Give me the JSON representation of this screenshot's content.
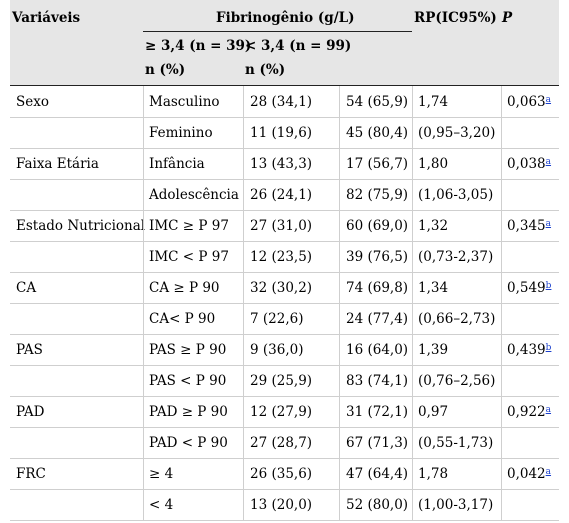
{
  "header": {
    "col_variaveis": "Variáveis",
    "col_group": "Fibrinogênio (g/L)",
    "col_rp": "RP(IC95%)",
    "col_p": "P",
    "sub1": "≥ 3,4 (n = 39)",
    "sub2": "< 3,4 (n = 99)",
    "unit1": "n (%)",
    "unit2": "n (%)"
  },
  "rows": [
    {
      "var": "Sexo",
      "cat": "Masculino",
      "a": "28 (34,1)",
      "b": "54 (65,9)",
      "rp": "1,74",
      "p": "0,063",
      "note": "a"
    },
    {
      "var": "",
      "cat": "Feminino",
      "a": "11 (19,6)",
      "b": "45 (80,4)",
      "rp": "(0,95–3,20)",
      "p": "",
      "note": ""
    },
    {
      "var": "Faixa Etária",
      "cat": "Infância",
      "a": "13 (43,3)",
      "b": "17 (56,7)",
      "rp": "1,80",
      "p": "0,038",
      "note": "a"
    },
    {
      "var": "",
      "cat": "Adolescência",
      "a": "26 (24,1)",
      "b": "82 (75,9)",
      "rp": "(1,06-3,05)",
      "p": "",
      "note": ""
    },
    {
      "var": "Estado Nutricional",
      "cat": "IMC ≥ P 97",
      "a": "27 (31,0)",
      "b": "60 (69,0)",
      "rp": "1,32",
      "p": "0,345",
      "note": "a"
    },
    {
      "var": "",
      "cat": "IMC < P 97",
      "a": "12 (23,5)",
      "b": "39 (76,5)",
      "rp": "(0,73-2,37)",
      "p": "",
      "note": ""
    },
    {
      "var": "CA",
      "cat": "CA ≥ P 90",
      "a": "32 (30,2)",
      "b": "74 (69,8)",
      "rp": "1,34",
      "p": "0,549",
      "note": "b"
    },
    {
      "var": "",
      "cat": "CA< P 90",
      "a": "7 (22,6)",
      "b": "24 (77,4)",
      "rp": "(0,66–2,73)",
      "p": "",
      "note": ""
    },
    {
      "var": "PAS",
      "cat": "PAS ≥ P 90",
      "a": "9 (36,0)",
      "b": "16 (64,0)",
      "rp": "1,39",
      "p": "0,439",
      "note": "b"
    },
    {
      "var": "",
      "cat": "PAS < P 90",
      "a": "29 (25,9)",
      "b": "83 (74,1)",
      "rp": "(0,76–2,56)",
      "p": "",
      "note": ""
    },
    {
      "var": "PAD",
      "cat": "PAD ≥ P 90",
      "a": "12 (27,9)",
      "b": "31 (72,1)",
      "rp": "0,97",
      "p": "0,922",
      "note": "a"
    },
    {
      "var": "",
      "cat": "PAD < P 90",
      "a": "27 (28,7)",
      "b": "67 (71,3)",
      "rp": "(0,55-1,73)",
      "p": "",
      "note": ""
    },
    {
      "var": "FRC",
      "cat": "≥ 4",
      "a": "26 (35,6)",
      "b": "47 (64,4)",
      "rp": "1,78",
      "p": "0,042",
      "note": "a"
    },
    {
      "var": "",
      "cat": "< 4",
      "a": "13 (20,0)",
      "b": "52 (80,0)",
      "rp": "(1,00-3,17)",
      "p": "",
      "note": ""
    }
  ],
  "colors": {
    "header_bg": "#e6e6e6",
    "link": "#1a3fcc"
  }
}
